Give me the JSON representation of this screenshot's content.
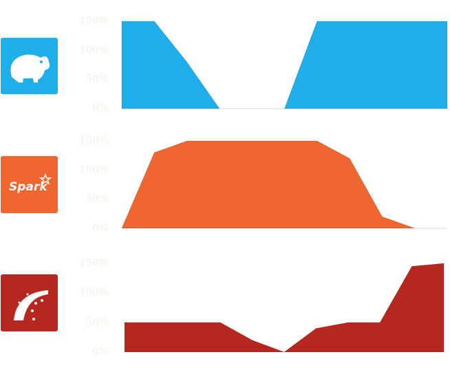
{
  "chart_data": [
    {
      "type": "area",
      "logo": "hadoop",
      "color": "#1eaee9",
      "categories": [
        null,
        null,
        null,
        null,
        null,
        null,
        null,
        null,
        null,
        null,
        null
      ],
      "values": [
        150,
        150,
        80,
        0,
        0,
        0,
        150,
        150,
        150,
        150,
        150
      ],
      "ylim": [
        0,
        150
      ],
      "yticks": [
        {
          "value": 0,
          "label": "0%"
        },
        {
          "value": 50,
          "label": "50%"
        },
        {
          "value": 100,
          "label": "100%"
        },
        {
          "value": 150,
          "label": "150%"
        }
      ]
    },
    {
      "type": "area",
      "logo": "spark",
      "logo_text": "Spark",
      "color": "#ef6630",
      "categories": [
        null,
        null,
        null,
        null,
        null,
        null,
        null,
        null,
        null,
        null,
        null
      ],
      "values": [
        0,
        130,
        150,
        150,
        150,
        150,
        150,
        120,
        20,
        0,
        0
      ],
      "ylim": [
        0,
        150
      ],
      "yticks": [
        {
          "value": 0,
          "label": "0%"
        },
        {
          "value": 50,
          "label": "50%"
        },
        {
          "value": 100,
          "label": "100%"
        },
        {
          "value": 150,
          "label": "150%"
        }
      ]
    },
    {
      "type": "area",
      "logo": "rails",
      "color": "#b5271f",
      "categories": [
        null,
        null,
        null,
        null,
        null,
        null,
        null,
        null,
        null,
        null,
        null
      ],
      "values": [
        50,
        50,
        50,
        50,
        20,
        0,
        40,
        50,
        50,
        145,
        150
      ],
      "ylim": [
        0,
        150
      ],
      "yticks": [
        {
          "value": 0,
          "label": "0%"
        },
        {
          "value": 50,
          "label": "50%"
        },
        {
          "value": 100,
          "label": "100%"
        },
        {
          "value": 150,
          "label": "150%"
        }
      ]
    }
  ]
}
